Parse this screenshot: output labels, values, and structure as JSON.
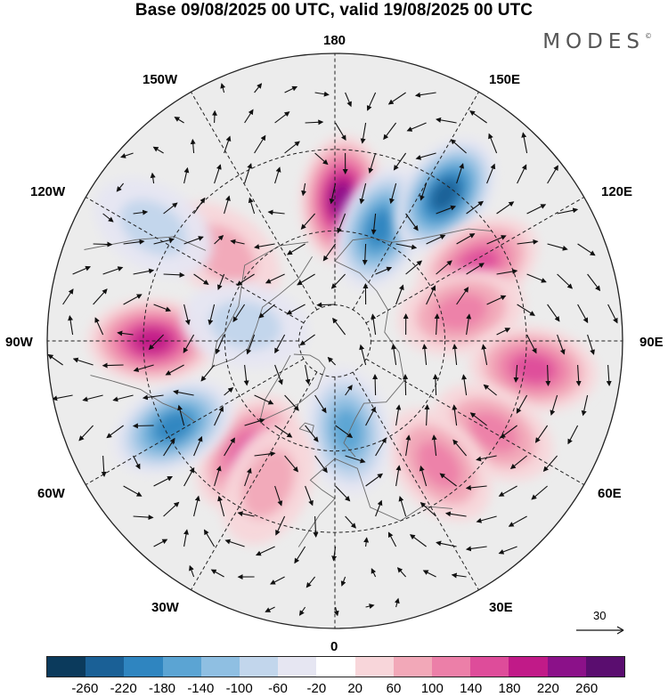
{
  "header": {
    "title": "Base 09/08/2025 00 UTC, valid 19/08/2025 00 UTC",
    "brand": "MODES",
    "brand_mark": "©"
  },
  "longitude_labels": {
    "lon_180": "180",
    "lon_150w": "150W",
    "lon_150e": "150E",
    "lon_120w": "120W",
    "lon_120e": "120E",
    "lon_90w": "90W",
    "lon_90e": "90E",
    "lon_60w": "60W",
    "lon_60e": "60E",
    "lon_30w": "30W",
    "lon_30e": "30E",
    "lon_0": "0"
  },
  "reference_vector": {
    "value": "30"
  },
  "colorbar": {
    "colors": [
      "#0b3a5c",
      "#1a6096",
      "#2f85c0",
      "#5ba4d3",
      "#8fbfe2",
      "#c2d6ec",
      "#e6e6f2",
      "#ffffff",
      "#f8d6da",
      "#f2a8b8",
      "#ec7fa8",
      "#de4c9a",
      "#c11a88",
      "#8b1189",
      "#5a0d6f"
    ],
    "ticks": [
      "-260",
      "-220",
      "-180",
      "-140",
      "-100",
      "-60",
      "-20",
      "20",
      "60",
      "100",
      "140",
      "180",
      "220",
      "260"
    ]
  },
  "anomaly_centers": [
    {
      "lon": 177,
      "lat": 52,
      "value": 230
    },
    {
      "lon": 158,
      "lat": 57,
      "value": -180
    },
    {
      "lon": 143,
      "lat": 42,
      "value": -230
    },
    {
      "lon": 118,
      "lat": 47,
      "value": 160
    },
    {
      "lon": 103,
      "lat": 55,
      "value": 130
    },
    {
      "lon": 82,
      "lat": 38,
      "value": 150
    },
    {
      "lon": 60,
      "lat": 42,
      "value": 110
    },
    {
      "lon": 40,
      "lat": 47,
      "value": 120
    },
    {
      "lon": 8,
      "lat": 65,
      "value": -150
    },
    {
      "lon": -38,
      "lat": 52,
      "value": 160
    },
    {
      "lon": -62,
      "lat": 42,
      "value": -200
    },
    {
      "lon": -90,
      "lat": 42,
      "value": 200
    },
    {
      "lon": -128,
      "lat": 52,
      "value": 80
    },
    {
      "lon": -122,
      "lat": 35,
      "value": -60
    },
    {
      "lon": -25,
      "lat": 48,
      "value": 80
    },
    {
      "lon": -100,
      "lat": 65,
      "value": -60
    }
  ]
}
